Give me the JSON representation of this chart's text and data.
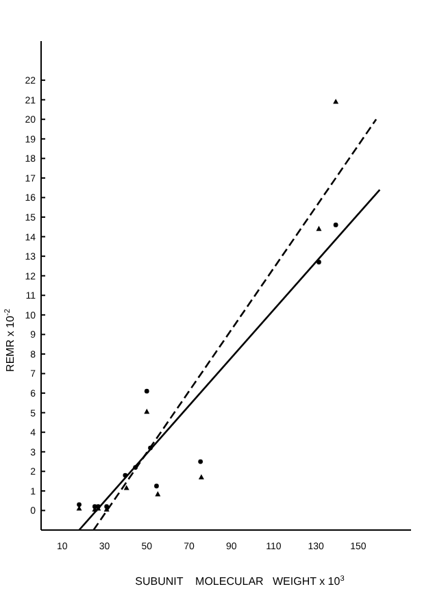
{
  "chart_data": {
    "type": "scatter",
    "xlabel": "SUBUNIT    MOLECULAR   WEIGHT x 10$^{3}$",
    "ylabel": "REMR x 10$^{-2}$",
    "xlim": [
      0,
      175
    ],
    "ylim": [
      -1,
      24
    ],
    "xticks": [
      10,
      30,
      50,
      70,
      90,
      110,
      130,
      150
    ],
    "yticks": [
      0,
      1,
      2,
      3,
      4,
      5,
      6,
      7,
      8,
      9,
      10,
      11,
      12,
      13,
      14,
      15,
      16,
      17,
      18,
      19,
      20,
      21,
      22
    ],
    "grid": false,
    "series": [
      {
        "marker": "circle",
        "color": "#000000",
        "x": [
          18,
          25.4,
          27,
          31,
          39.8,
          44.6,
          50,
          51.7,
          54.6,
          75.4,
          131.4,
          139.4
        ],
        "values": [
          0.3,
          0.2,
          0.2,
          0.2,
          1.8,
          2.2,
          6.1,
          3.2,
          1.25,
          2.5,
          12.7,
          14.6
        ]
      },
      {
        "marker": "triangle",
        "color": "#000000",
        "x": [
          18,
          25.4,
          27,
          31,
          40.4,
          50,
          55.2,
          75.8,
          131.4,
          139.4
        ],
        "values": [
          0.1,
          0.05,
          0.1,
          0.05,
          1.15,
          5.05,
          0.83,
          1.7,
          14.4,
          20.9
        ]
      },
      {
        "type": "line",
        "line_style": "solid",
        "marker": "none",
        "color": "#000000",
        "x": [
          18,
          160.2
        ],
        "values": [
          -1,
          16.4
        ]
      },
      {
        "type": "line",
        "line_style": "dashed",
        "marker": "none",
        "color": "#000000",
        "x": [
          24.8,
          158.5
        ],
        "values": [
          -1,
          20.0
        ]
      }
    ]
  }
}
